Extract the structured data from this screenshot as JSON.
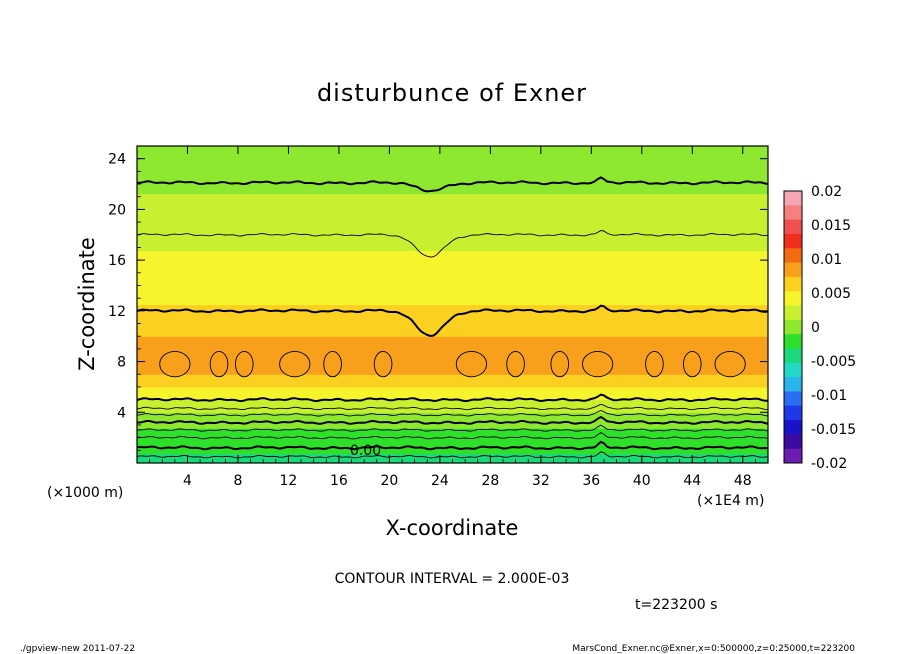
{
  "chart_data": {
    "type": "heatmap",
    "title": "disturbunce of Exner",
    "xlabel": "X-coordinate",
    "ylabel": "Z-coordinate",
    "x_unit_label": "(×1E4 m)",
    "y_unit_label": "(×1000 m)",
    "xlim": [
      0,
      50
    ],
    "ylim": [
      0,
      25
    ],
    "x_ticks": [
      "4",
      "8",
      "12",
      "16",
      "20",
      "24",
      "28",
      "32",
      "36",
      "40",
      "44",
      "48"
    ],
    "y_ticks": [
      "4",
      "8",
      "12",
      "16",
      "20",
      "24"
    ],
    "contour_interval_text": "CONTOUR INTERVAL = 2.000E-03",
    "time_text": "t=223200 s",
    "contour_label": "0.00",
    "colorbar": {
      "labels": [
        "0.02",
        "0.015",
        "0.01",
        "0.005",
        "0",
        "-0.005",
        "-0.01",
        "-0.015",
        "-0.02"
      ],
      "colors": [
        "#f4a6b4",
        "#f7807f",
        "#f25050",
        "#ef2e1e",
        "#f46a10",
        "#f8a01c",
        "#fbd020",
        "#f6f42c",
        "#c8f030",
        "#8ee830",
        "#2fe02a",
        "#1ad87c",
        "#22d8c6",
        "#2ab4ee",
        "#2a6ef4",
        "#1f38e8",
        "#1a12c8",
        "#3c0aa0",
        "#6c1cb0"
      ]
    },
    "z_profile": [
      {
        "z": 0,
        "v": -0.004
      },
      {
        "z": 1,
        "v": -0.003
      },
      {
        "z": 2,
        "v": -0.002
      },
      {
        "z": 3,
        "v": -0.0005
      },
      {
        "z": 4,
        "v": 0.001
      },
      {
        "z": 5,
        "v": 0.003
      },
      {
        "z": 6,
        "v": 0.0055
      },
      {
        "z": 7,
        "v": 0.0075
      },
      {
        "z": 8,
        "v": 0.0088
      },
      {
        "z": 9,
        "v": 0.0082
      },
      {
        "z": 10,
        "v": 0.0074
      },
      {
        "z": 11,
        "v": 0.0065
      },
      {
        "z": 12,
        "v": 0.0056
      },
      {
        "z": 14,
        "v": 0.0045
      },
      {
        "z": 16,
        "v": 0.0035
      },
      {
        "z": 18,
        "v": 0.0025
      },
      {
        "z": 20,
        "v": 0.0016
      },
      {
        "z": 22,
        "v": 0.0008
      },
      {
        "z": 24,
        "v": 0.0002
      },
      {
        "z": 25,
        "v": 0.0
      }
    ],
    "bold_contours_z": [
      1.2,
      3.2,
      5.0,
      12.0,
      22.1
    ],
    "thin_contours_z": [
      0.5,
      2.0,
      2.6,
      3.8,
      4.3,
      18.0
    ],
    "closed_contour_x": [
      3,
      6.5,
      8.5,
      12.5,
      15.5,
      19.5,
      26.5,
      30,
      33.5,
      36.5,
      41,
      44,
      47
    ]
  },
  "footer": {
    "left": "./gpview-new  2011-07-22",
    "right": "MarsCond_Exner.nc@Exner,x=0:500000,z=0:25000,t=223200"
  }
}
